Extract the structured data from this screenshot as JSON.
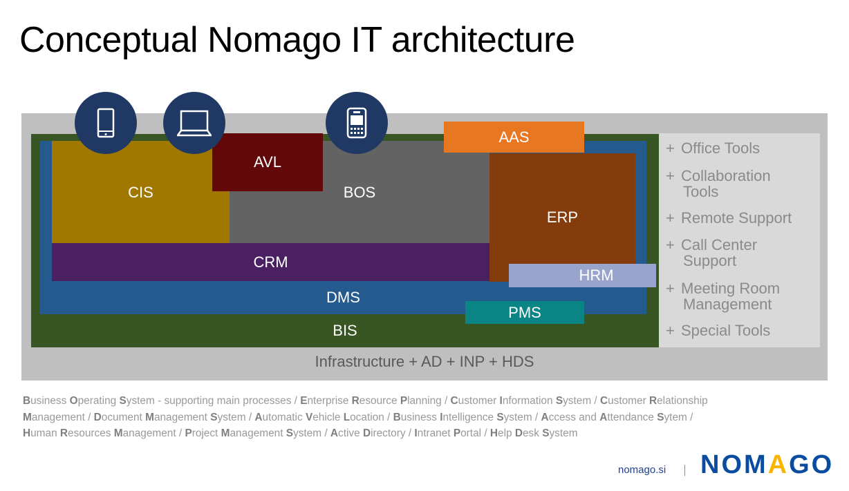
{
  "title": "Conceptual Nomago IT architecture",
  "layers": {
    "infrastructure": "Infrastructure + AD + INP + HDS",
    "bis": "BIS",
    "dms": "DMS",
    "cis": "CIS",
    "bos": "BOS",
    "avl": "AVL",
    "crm": "CRM",
    "aas": "AAS",
    "erp": "ERP",
    "hrm": "HRM",
    "pms": "PMS"
  },
  "colors": {
    "infrastructure": "#bfbfbf",
    "bis": "#375623",
    "dms": "#255a8e",
    "cis": "#a07800",
    "bos": "#636363",
    "avl": "#620808",
    "crm": "#4a2063",
    "aas": "#e87722",
    "erp": "#843c0c",
    "hrm": "#98a4cc",
    "pms": "#0a8484",
    "device_circle": "#203864"
  },
  "devices": [
    "smartphone-icon",
    "laptop-icon",
    "handheld-terminal-icon"
  ],
  "tools": [
    {
      "plus": "+",
      "line1": "Office Tools",
      "line2": ""
    },
    {
      "plus": "+",
      "line1": "Collaboration",
      "line2": "Tools"
    },
    {
      "plus": "+",
      "line1": "Remote Support",
      "line2": ""
    },
    {
      "plus": "+",
      "line1": "Call Center",
      "line2": "Support"
    },
    {
      "plus": "+",
      "line1": "Meeting Room",
      "line2": "Management"
    },
    {
      "plus": "+",
      "line1": "Special Tools",
      "line2": ""
    }
  ],
  "glossary_lines": [
    [
      [
        "B",
        "usiness "
      ],
      [
        "O",
        "perating "
      ],
      [
        "S",
        "ystem - supporting main processes / "
      ],
      [
        "E",
        "nterprise "
      ],
      [
        "R",
        "esource "
      ],
      [
        "P",
        "lanning / "
      ],
      [
        "C",
        "ustomer "
      ],
      [
        "I",
        "nformation "
      ],
      [
        "S",
        "ystem / "
      ],
      [
        "C",
        "ustomer "
      ],
      [
        "R",
        "elationship"
      ]
    ],
    [
      [
        "M",
        "anagement / "
      ],
      [
        "D",
        "ocument "
      ],
      [
        "M",
        "anagement "
      ],
      [
        "S",
        "ystem / "
      ],
      [
        "A",
        "utomatic "
      ],
      [
        "V",
        "ehicle "
      ],
      [
        "L",
        "ocation / "
      ],
      [
        "B",
        "usiness "
      ],
      [
        "I",
        "ntelligence "
      ],
      [
        "S",
        "ystem / "
      ],
      [
        "A",
        "ccess and "
      ],
      [
        "A",
        "ttendance "
      ],
      [
        "S",
        "ytem /"
      ]
    ],
    [
      [
        "H",
        "uman "
      ],
      [
        "R",
        "esources "
      ],
      [
        "M",
        "anagement / "
      ],
      [
        "P",
        "roject "
      ],
      [
        "M",
        "anagement "
      ],
      [
        "S",
        "ystem / "
      ],
      [
        "A",
        "ctive "
      ],
      [
        "D",
        "irectory / "
      ],
      [
        "I",
        "ntranet "
      ],
      [
        "P",
        "ortal / "
      ],
      [
        "H",
        "elp "
      ],
      [
        "D",
        "esk "
      ],
      [
        "S",
        "ystem"
      ]
    ]
  ],
  "footer": {
    "site": "nomago.si",
    "logo_pre": "NOM",
    "logo_a": "A",
    "logo_post": "GO"
  }
}
